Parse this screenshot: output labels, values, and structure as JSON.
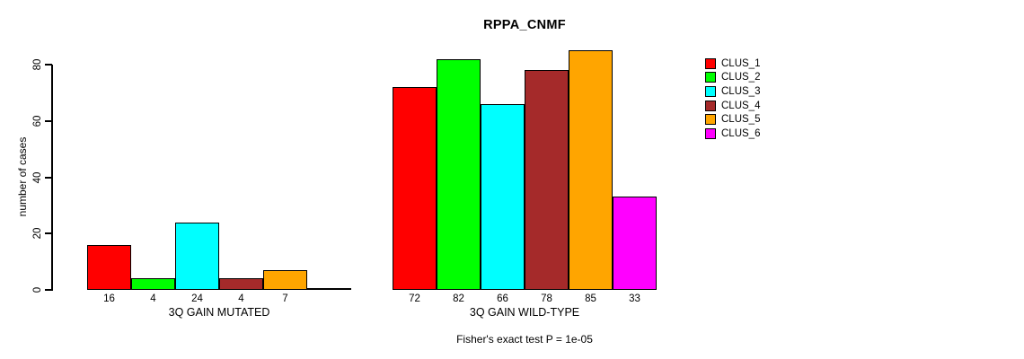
{
  "title": "RPPA_CNMF",
  "chart_data": {
    "type": "bar",
    "title": "RPPA_CNMF",
    "xlabel": "",
    "ylabel": "number of cases",
    "ylim": [
      0,
      85
    ],
    "yticks": [
      0,
      20,
      40,
      60,
      80
    ],
    "grid": false,
    "legend_position": "right",
    "cluster_colors": [
      "#FF0000",
      "#00FF00",
      "#00FFFF",
      "#A52A2A",
      "#FFA500",
      "#FF00FF"
    ],
    "legend": [
      {
        "label": "CLUS_1",
        "color": "#FF0000"
      },
      {
        "label": "CLUS_2",
        "color": "#00FF00"
      },
      {
        "label": "CLUS_3",
        "color": "#00FFFF"
      },
      {
        "label": "CLUS_4",
        "color": "#A52A2A"
      },
      {
        "label": "CLUS_5",
        "color": "#FFA500"
      },
      {
        "label": "CLUS_6",
        "color": "#FF00FF"
      }
    ],
    "groups": [
      {
        "label": "3Q GAIN MUTATED",
        "values": [
          16,
          4,
          24,
          4,
          7,
          0
        ],
        "bar_labels": [
          "16",
          "4",
          "24",
          "4",
          "7",
          null
        ]
      },
      {
        "label": "3Q GAIN WILD-TYPE",
        "values": [
          72,
          82,
          66,
          78,
          85,
          33
        ],
        "bar_labels": [
          "72",
          "82",
          "66",
          "78",
          "85",
          "33"
        ]
      }
    ],
    "annotation": "Fisher's exact test P = 1e-05"
  }
}
